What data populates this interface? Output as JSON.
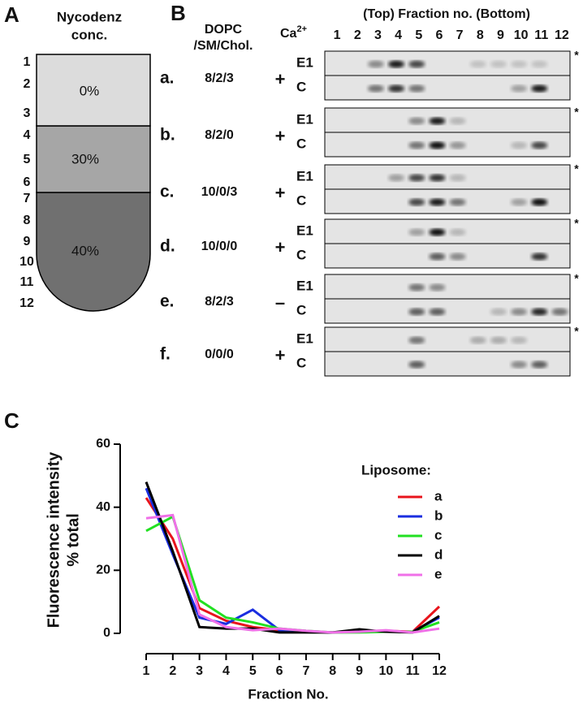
{
  "panel_a": {
    "label": "A",
    "title": [
      "Nycodenz",
      "conc."
    ],
    "fractions": [
      "1",
      "2",
      "3",
      "4",
      "5",
      "6",
      "7",
      "8",
      "9",
      "10",
      "11",
      "12"
    ],
    "layers": [
      "0%",
      "30%",
      "40%"
    ]
  },
  "panel_b": {
    "label": "B",
    "header_lipid": [
      "DOPC",
      "/SM/Chol."
    ],
    "header_ca": "Ca",
    "header_ca_sup": "2+",
    "header_fraction": "(Top) Fraction no. (Bottom)",
    "fractions": [
      "1",
      "2",
      "3",
      "4",
      "5",
      "6",
      "7",
      "8",
      "9",
      "10",
      "11",
      "12"
    ],
    "asterisk": "*",
    "rows": [
      {
        "letter": "a.",
        "composition": "8/2/3",
        "ca": "+",
        "lanes": [
          "E1",
          "C"
        ]
      },
      {
        "letter": "b.",
        "composition": "8/2/0",
        "ca": "+",
        "lanes": [
          "E1",
          "C"
        ]
      },
      {
        "letter": "c.",
        "composition": "10/0/3",
        "ca": "+",
        "lanes": [
          "E1",
          "C"
        ]
      },
      {
        "letter": "d.",
        "composition": "10/0/0",
        "ca": "+",
        "lanes": [
          "E1",
          "C"
        ]
      },
      {
        "letter": "e.",
        "composition": "8/2/3",
        "ca": "–",
        "lanes": [
          "E1",
          "C"
        ]
      },
      {
        "letter": "f.",
        "composition": "0/0/0",
        "ca": "+",
        "lanes": [
          "E1",
          "C"
        ]
      }
    ]
  },
  "chart_data": {
    "type": "line",
    "panel_label": "C",
    "legend_title": "Liposome:",
    "y_label": [
      "Fluorescence intensity",
      "% total"
    ],
    "x_label": "Fraction No.",
    "x": [
      1,
      2,
      3,
      4,
      5,
      6,
      7,
      8,
      9,
      10,
      11,
      12
    ],
    "series": [
      {
        "name": "a",
        "color": "#e8141c",
        "values": [
          43,
          30,
          8,
          4,
          2,
          1,
          0.5,
          0.3,
          0.5,
          0.8,
          0.5,
          8.5
        ]
      },
      {
        "name": "b",
        "color": "#1a2ee0",
        "values": [
          46,
          25,
          5,
          3,
          7.5,
          1,
          0.5,
          0.3,
          0.5,
          0.5,
          0.5,
          5
        ]
      },
      {
        "name": "c",
        "color": "#22e022",
        "values": [
          32.5,
          37,
          10.5,
          5,
          3.5,
          1.5,
          0.8,
          0.3,
          0.3,
          0.5,
          0.5,
          3.5
        ]
      },
      {
        "name": "d",
        "color": "#000000",
        "values": [
          48,
          26,
          2,
          1.5,
          1.5,
          0.3,
          0.3,
          0.3,
          1.3,
          0.5,
          0.3,
          5.5
        ]
      },
      {
        "name": "e",
        "color": "#f070e8",
        "values": [
          36.5,
          37.5,
          6,
          2,
          1,
          1.5,
          0.8,
          0.3,
          0.5,
          1,
          0.3,
          1.5
        ]
      }
    ],
    "xlim": [
      1,
      12
    ],
    "xticks": [
      1,
      2,
      3,
      4,
      5,
      6,
      7,
      8,
      9,
      10,
      11,
      12
    ],
    "ylim": [
      0,
      60
    ],
    "yticks": [
      0,
      20,
      40,
      60
    ]
  }
}
